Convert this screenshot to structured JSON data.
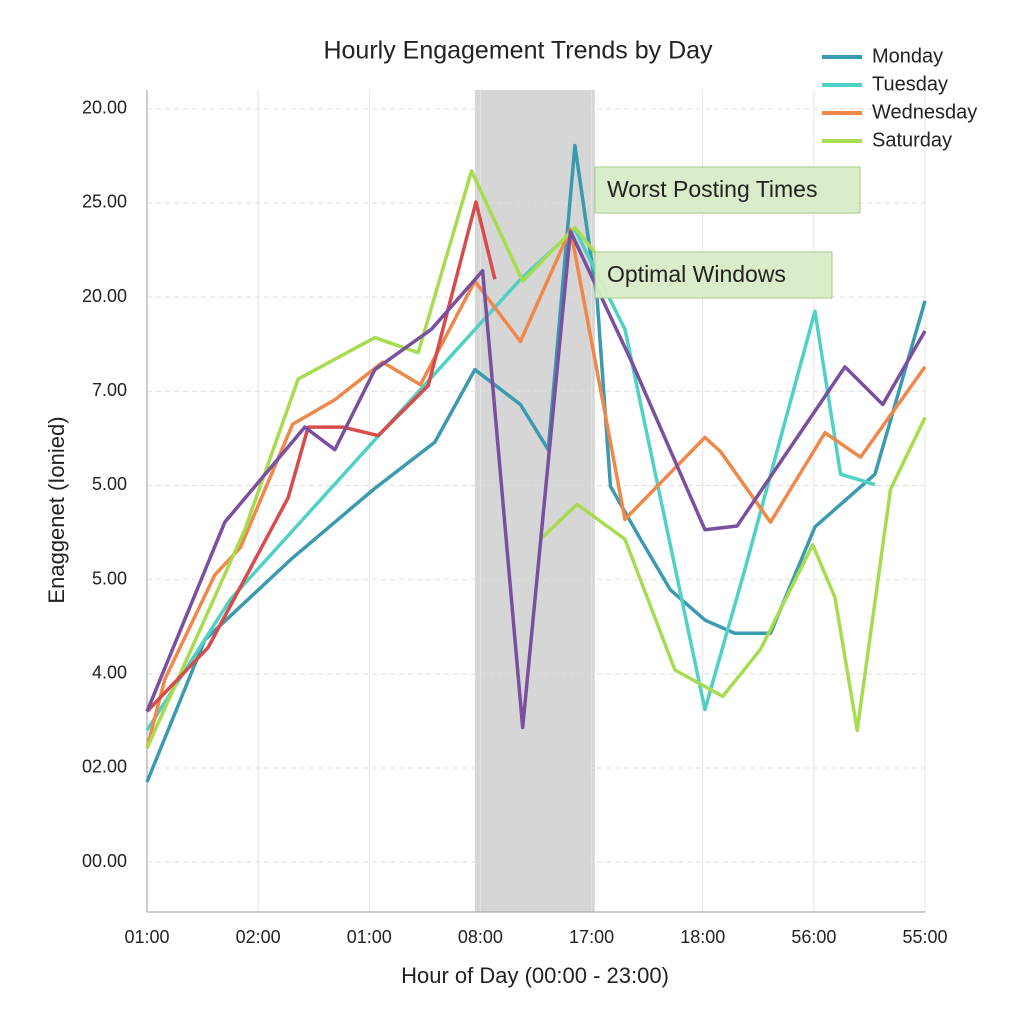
{
  "chart_data": {
    "type": "line",
    "title": "Hourly Engagement Trends by Day",
    "xlabel": "Hour of Day (00:00 - 23:00)",
    "ylabel": "Enaggenet (Ionied)",
    "xlim": [
      0,
      7
    ],
    "xticks": [
      {
        "value": 0,
        "label": "01:00"
      },
      {
        "value": 1,
        "label": "02:00"
      },
      {
        "value": 2,
        "label": "01:00"
      },
      {
        "value": 3,
        "label": "08:00"
      },
      {
        "value": 4,
        "label": "17:00"
      },
      {
        "value": 5,
        "label": "18:00"
      },
      {
        "value": 6,
        "label": "56:00"
      },
      {
        "value": 7,
        "label": "55:00"
      }
    ],
    "ylim": [
      -0.53,
      8.2
    ],
    "yticks": [
      {
        "value": 0,
        "label": "00.00"
      },
      {
        "value": 1,
        "label": "02.00"
      },
      {
        "value": 2,
        "label": "4.00"
      },
      {
        "value": 3,
        "label": "5.00"
      },
      {
        "value": 4,
        "label": "5.00"
      },
      {
        "value": 5,
        "label": "7.00"
      },
      {
        "value": 6,
        "label": "20.00"
      },
      {
        "value": 7,
        "label": "25.00"
      },
      {
        "value": 8,
        "label": "20.00"
      }
    ],
    "grid": true,
    "legend": "upper right",
    "shade": [
      2.95,
      4.03
    ],
    "annotations": [
      "Worst Posting Times",
      "Optimal Windows"
    ],
    "series": [
      {
        "name": "Monday",
        "color": "#3a9ab0",
        "x": [
          0,
          0.52,
          1.29,
          2.04,
          2.59,
          2.95,
          3.36,
          3.61,
          3.85,
          4.05,
          4.17,
          4.44,
          4.71,
          5.02,
          5.29,
          5.61,
          6.01,
          6.55,
          7.0
        ],
        "values": [
          0.85,
          2.36,
          3.21,
          3.96,
          4.46,
          5.23,
          4.86,
          4.38,
          7.61,
          5.98,
          3.99,
          3.43,
          2.89,
          2.57,
          2.43,
          2.43,
          3.56,
          4.12,
          5.96
        ]
      },
      {
        "name": "Tuesday",
        "color": "#4fd1c5",
        "x": [
          0,
          0.75,
          3.36,
          3.85,
          4.3,
          5.02,
          5.38,
          6.01,
          6.24,
          6.55
        ],
        "values": [
          1.4,
          2.79,
          6.19,
          6.72,
          5.66,
          1.62,
          3.11,
          5.85,
          4.12,
          4.01
        ]
      },
      {
        "name": "Wednesday",
        "color": "#f0884a",
        "x": [
          0,
          0.16,
          0.61,
          0.84,
          1.31,
          1.69,
          2.12,
          2.46,
          2.95,
          3.36,
          3.81,
          4.3,
          5.02,
          5.16,
          5.61,
          6.1,
          6.42,
          7.0
        ],
        "values": [
          1.21,
          1.94,
          3.05,
          3.34,
          4.65,
          4.91,
          5.31,
          5.07,
          6.17,
          5.53,
          6.72,
          3.64,
          4.51,
          4.36,
          3.61,
          4.56,
          4.3,
          5.26
        ]
      },
      {
        "name": "Saturday",
        "color": "#a8dc50",
        "x": [
          0,
          0.88,
          1.36,
          2.05,
          2.44,
          2.92,
          3.38,
          3.85,
          4.08,
          null,
          3.54,
          3.87,
          4.3,
          4.75,
          5.18,
          5.52,
          5.99,
          6.19,
          6.39,
          6.69,
          7.0
        ],
        "values": [
          1.21,
          3.53,
          5.13,
          5.57,
          5.41,
          7.34,
          6.17,
          6.74,
          6.4,
          null,
          3.43,
          3.8,
          3.43,
          2.04,
          1.76,
          2.26,
          3.37,
          2.81,
          1.4,
          3.96,
          4.72
        ]
      },
      {
        "color": "#d94a4a",
        "x": [
          0,
          0.55,
          1.27,
          1.45,
          1.76,
          2.08,
          2.53,
          2.96,
          3.13
        ],
        "values": [
          1.6,
          2.28,
          3.87,
          4.62,
          4.62,
          4.53,
          5.06,
          7.01,
          6.19
        ]
      },
      {
        "color": "#7b4fa0",
        "x": [
          0,
          0.7,
          1.42,
          1.69,
          2.05,
          2.56,
          3.02,
          3.38,
          3.81,
          4.37,
          5.02,
          5.31,
          6.28,
          6.62,
          7.0
        ],
        "values": [
          1.6,
          3.61,
          4.62,
          4.38,
          5.23,
          5.66,
          6.28,
          1.43,
          6.7,
          5.29,
          3.53,
          3.57,
          5.26,
          4.86,
          5.64
        ]
      }
    ]
  }
}
